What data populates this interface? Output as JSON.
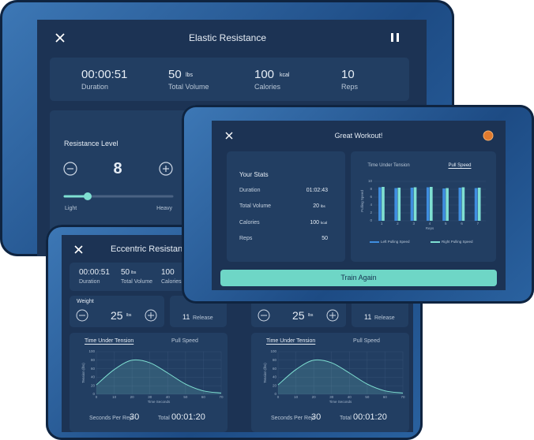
{
  "elastic_screen": {
    "title": "Elastic Resistance",
    "stats": [
      {
        "value": "00:00:51",
        "label": "Duration"
      },
      {
        "value": 50,
        "unit": "lbs",
        "label": "Total Volume"
      },
      {
        "value": 100,
        "unit": "kcal",
        "label": "Calories"
      },
      {
        "value": 10,
        "label": "Reps"
      }
    ],
    "resistance": {
      "label": "Resistance Level",
      "level": 8,
      "low": "Light",
      "high": "Heavy"
    }
  },
  "eccentric_screen": {
    "title": "Eccentric Resistance",
    "stats": [
      {
        "value": "00:00:51",
        "label": "Duration"
      },
      {
        "value": 50,
        "unit": "lbs",
        "label": "Total Volume"
      },
      {
        "value": 100,
        "label": "Calories"
      }
    ],
    "panels": [
      {
        "weight_label": "Weight",
        "weight": 25,
        "unit": "lbs",
        "release": 11,
        "release_label": "Release",
        "tabs": [
          "Time Under Tension",
          "Pull Speed"
        ],
        "seconds_label": "Seconds Per Rep",
        "seconds": 30,
        "total_label": "Total",
        "total": "00:01:20"
      },
      {
        "weight": 25,
        "unit": "lbs",
        "release": 11,
        "release_label": "Release",
        "tabs": [
          "Time Under Tension",
          "Pull Speed"
        ],
        "seconds_label": "Seconds Per Rep",
        "seconds": 30,
        "total_label": "Total",
        "total": "00:01:20"
      }
    ]
  },
  "summary_screen": {
    "title": "Great Workout!",
    "stats_title": "Your Stats",
    "stats": [
      {
        "label": "Duration",
        "value": "01:02:43"
      },
      {
        "label": "Total Volume",
        "value": 20,
        "unit": "lbs"
      },
      {
        "label": "Calories",
        "value": 100,
        "unit": "kcal"
      },
      {
        "label": "Reps",
        "value": 50
      }
    ],
    "tabs": [
      "Time Under Tension",
      "Pull Speed"
    ],
    "button": "Train Again"
  },
  "chart_data": [
    {
      "type": "line",
      "x_label": "Time Seconds",
      "y_label": "Tension (lbs)",
      "x": [
        0,
        10,
        20,
        30,
        40,
        50,
        60,
        70
      ],
      "series": [
        {
          "color": "#7fe0d2",
          "values": [
            22,
            58,
            80,
            74,
            50,
            24,
            8,
            3
          ]
        }
      ],
      "xlim": [
        0,
        70
      ],
      "ylim": [
        0,
        100
      ],
      "xticks": [
        0,
        10,
        20,
        30,
        40,
        50,
        60,
        70
      ],
      "yticks": [
        0,
        20,
        40,
        60,
        80,
        100
      ],
      "grid": true
    },
    {
      "type": "line",
      "x_label": "Time Seconds",
      "y_label": "Tension (lbs)",
      "x": [
        0,
        10,
        20,
        30,
        40,
        50,
        60,
        70
      ],
      "series": [
        {
          "color": "#7fe0d2",
          "values": [
            22,
            58,
            80,
            74,
            50,
            24,
            8,
            3
          ]
        }
      ],
      "xlim": [
        0,
        70
      ],
      "ylim": [
        0,
        100
      ],
      "xticks": [
        0,
        10,
        20,
        30,
        40,
        50,
        60,
        70
      ],
      "yticks": [
        0,
        20,
        40,
        60,
        80,
        100
      ],
      "grid": true
    },
    {
      "type": "bar",
      "x_label": "Reps",
      "y_label": "Pulling Speed",
      "categories": [
        "1",
        "2",
        "3",
        "4",
        "5",
        "6",
        "7"
      ],
      "series": [
        {
          "name": "Left Pulling Speed",
          "color": "#3f8ee0",
          "values": [
            8.5,
            8.3,
            8.4,
            8.5,
            8.2,
            8.4,
            8.3
          ]
        },
        {
          "name": "Right Pulling Speed",
          "color": "#7fe0d2",
          "values": [
            8.6,
            8.4,
            8.5,
            8.6,
            8.3,
            8.5,
            8.4
          ]
        }
      ],
      "ylim": [
        0,
        10
      ],
      "yticks": [
        0,
        2,
        4,
        6,
        8,
        10
      ],
      "grid": true
    }
  ]
}
